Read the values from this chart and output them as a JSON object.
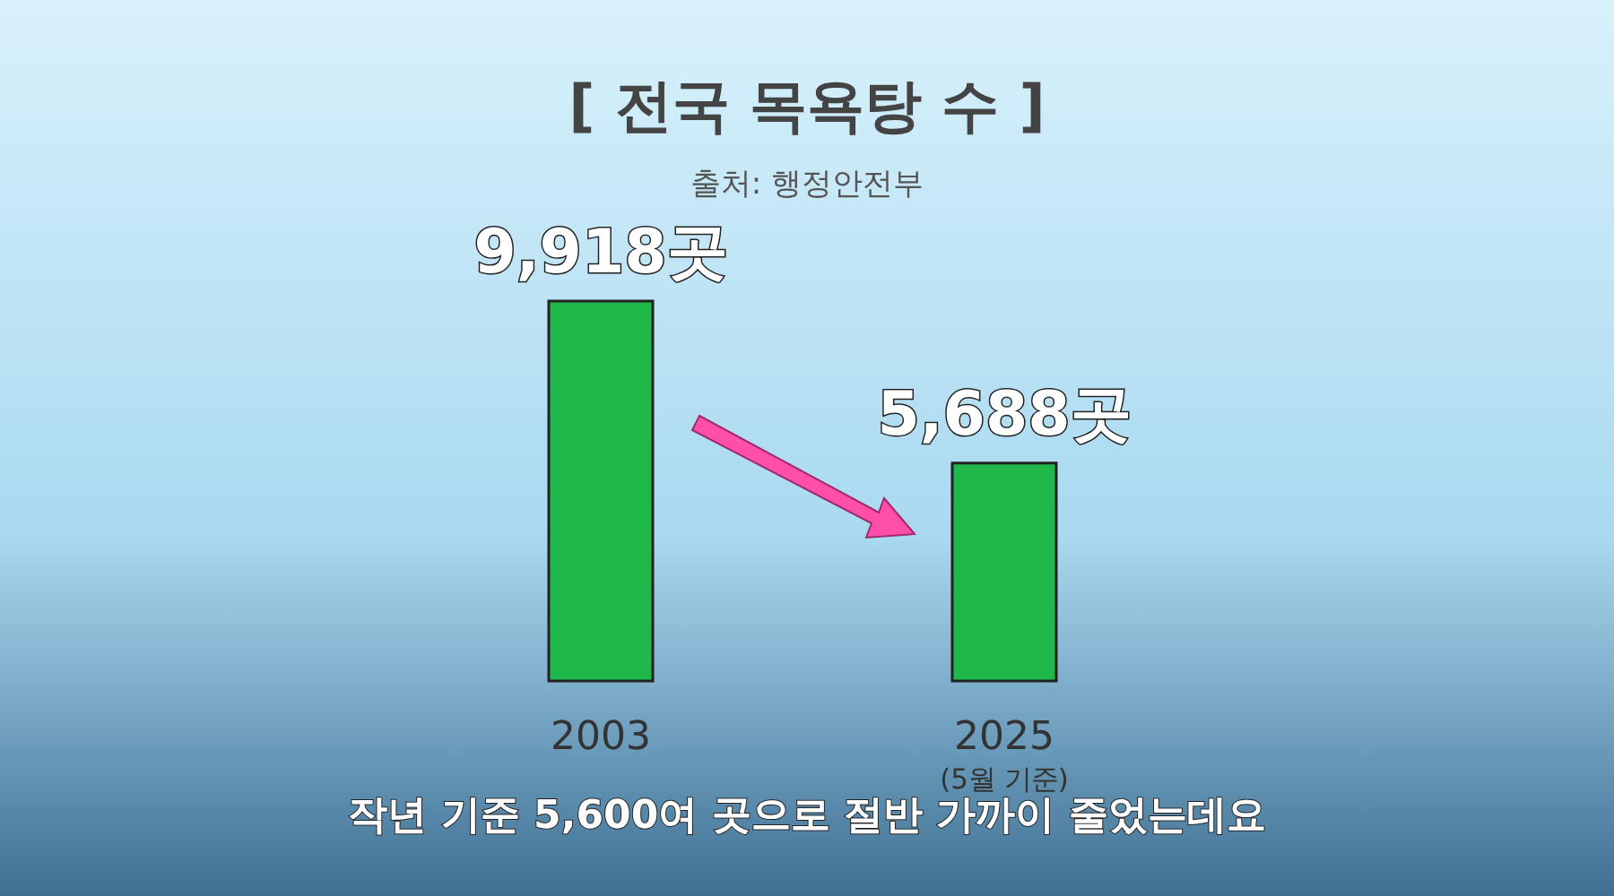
{
  "chart_data": {
    "type": "bar",
    "title": "[ 전국 목욕탕 수 ]",
    "subtitle": "출처: 행정안전부",
    "categories": [
      "2003",
      "2025\n(5월 기준)"
    ],
    "values": [
      9918,
      5688
    ],
    "value_labels": [
      "9,918곳",
      "5,688곳"
    ],
    "color": "#1fb84a",
    "grid": false,
    "annotations": [
      "작년 기준 5,600여 곳으로 절반 가까이 줄었는데요"
    ]
  }
}
